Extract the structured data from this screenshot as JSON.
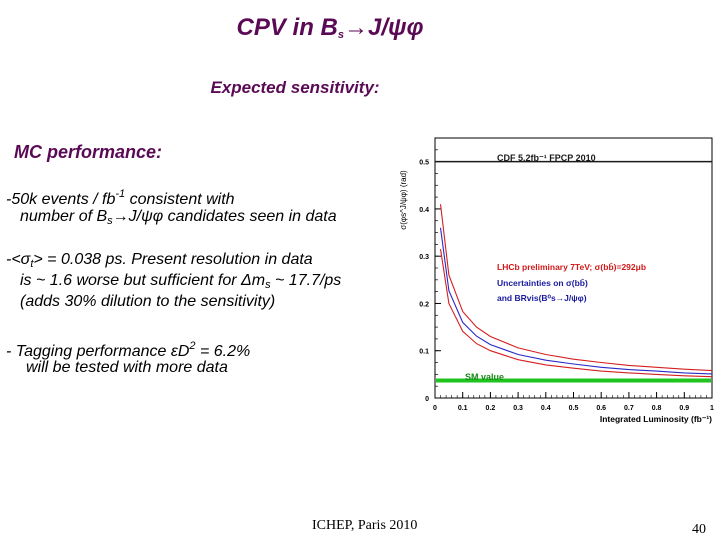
{
  "slide": {
    "title_pre": "CPV in B",
    "title_sub": "s",
    "title_arrow": "→",
    "title_post": "J/ψφ",
    "subtitle": "Expected sensitivity:",
    "mc_heading": "MC performance:",
    "bullet1": {
      "line1_a": "-50k events / fb",
      "line1_sup": "-1",
      "line1_b": "  consistent with",
      "line2_a": "number of  B",
      "line2_sub": "s",
      "line2_arrow": "→",
      "line2_b": "J/ψφ  candidates seen in data"
    },
    "bullet2": {
      "line1_a": "-<σ",
      "line1_sub": "t",
      "line1_b": "> = 0.038 ps.  Present resolution in data",
      "line2_a": "is ~ 1.6 worse but sufficient  for Δm",
      "line2_sub": "s",
      "line2_b": " ~ 17.7/ps",
      "line3": "(adds 30% dilution to the sensitivity)"
    },
    "bullet3": {
      "line1_a": "-  Tagging performance εD",
      "line1_sup": "2",
      "line1_b": " = 6.2%",
      "line2": "will be tested with more data"
    },
    "footer": "ICHEP, Paris 2010",
    "page_number": "40"
  },
  "colors": {
    "heading": "#5a0a55",
    "lhcb_label": "#d01818",
    "uncertainty_label": "#1a1aa0",
    "cdf_line": "#1a1a1a",
    "red_curve": "#d42020",
    "blue_curve": "#2a2ac8",
    "sm_line": "#1fc41f"
  },
  "chart_data": {
    "type": "line",
    "title": "",
    "xlabel": "Integrated Luminosity (fb⁻¹)",
    "ylabel": "σ(φs^J/ψφ) (rad)",
    "xlim": [
      0,
      1
    ],
    "ylim": [
      0,
      0.55
    ],
    "x_ticks": [
      0,
      0.1,
      0.2,
      0.3,
      0.4,
      0.5,
      0.6,
      0.7,
      0.8,
      0.9,
      1
    ],
    "x_tick_labels": [
      "0",
      "0.1",
      "0.2",
      "0.3",
      "0.4",
      "0.5",
      "0.6",
      "0.7",
      "0.8",
      "0.9",
      "1"
    ],
    "y_ticks": [
      0,
      0.1,
      0.2,
      0.3,
      0.4,
      0.5
    ],
    "y_tick_labels": [
      "0",
      "0.1",
      "0.2",
      "0.3",
      "0.4",
      "0.5"
    ],
    "annotations": {
      "cdf": "CDF 5.2fb⁻¹ FPCP 2010",
      "lhcb_a": "LHCb preliminary 7TeV;  σ(bb̄)=292μb",
      "unc_1": "Uncertainties on  σ(bb̄)",
      "unc_2": "and BRvis(B⁰s→J/ψφ)",
      "sm": "SM value"
    },
    "series": [
      {
        "name": "CDF 5.2fb⁻¹ FPCP 2010",
        "style": "hline",
        "y": 0.5
      },
      {
        "name": "Upper uncertainty",
        "color": "red",
        "x": [
          0.02,
          0.05,
          0.1,
          0.15,
          0.2,
          0.3,
          0.4,
          0.5,
          0.6,
          0.7,
          0.8,
          0.9,
          1.0
        ],
        "y": [
          0.41,
          0.26,
          0.183,
          0.15,
          0.13,
          0.106,
          0.092,
          0.082,
          0.075,
          0.069,
          0.065,
          0.061,
          0.058
        ]
      },
      {
        "name": "Central expectation",
        "color": "blue",
        "x": [
          0.02,
          0.05,
          0.1,
          0.15,
          0.2,
          0.3,
          0.4,
          0.5,
          0.6,
          0.7,
          0.8,
          0.9,
          1.0
        ],
        "y": [
          0.36,
          0.227,
          0.16,
          0.131,
          0.113,
          0.092,
          0.08,
          0.072,
          0.065,
          0.06,
          0.057,
          0.053,
          0.051
        ]
      },
      {
        "name": "Lower uncertainty",
        "color": "red",
        "x": [
          0.02,
          0.05,
          0.1,
          0.15,
          0.2,
          0.3,
          0.4,
          0.5,
          0.6,
          0.7,
          0.8,
          0.9,
          1.0
        ],
        "y": [
          0.315,
          0.2,
          0.141,
          0.115,
          0.1,
          0.081,
          0.07,
          0.063,
          0.057,
          0.053,
          0.05,
          0.047,
          0.045
        ]
      },
      {
        "name": "SM value",
        "style": "hline",
        "color": "green",
        "y": 0.037
      }
    ]
  }
}
